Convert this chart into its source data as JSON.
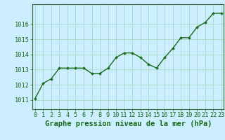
{
  "x": [
    0,
    1,
    2,
    3,
    4,
    5,
    6,
    7,
    8,
    9,
    10,
    11,
    12,
    13,
    14,
    15,
    16,
    17,
    18,
    19,
    20,
    21,
    22,
    23
  ],
  "y": [
    1011.1,
    1012.1,
    1012.4,
    1013.1,
    1013.1,
    1013.1,
    1013.1,
    1012.75,
    1012.75,
    1013.1,
    1013.8,
    1014.1,
    1014.1,
    1013.8,
    1013.35,
    1013.1,
    1013.8,
    1014.4,
    1015.1,
    1015.1,
    1015.8,
    1016.1,
    1016.7,
    1016.7
  ],
  "line_color": "#1a6b1a",
  "marker_color": "#1a6b1a",
  "bg_color": "#cceeff",
  "grid_color": "#aaddcc",
  "xlabel": "Graphe pression niveau de la mer (hPa)",
  "xlabel_fontsize": 7.5,
  "ylabel_ticks": [
    1011,
    1012,
    1013,
    1014,
    1015,
    1016
  ],
  "ylim": [
    1010.4,
    1017.3
  ],
  "xlim": [
    -0.3,
    23.3
  ],
  "tick_fontsize": 6.2,
  "xlabel_color": "#1a6b1a",
  "tick_color": "#1a6b1a"
}
